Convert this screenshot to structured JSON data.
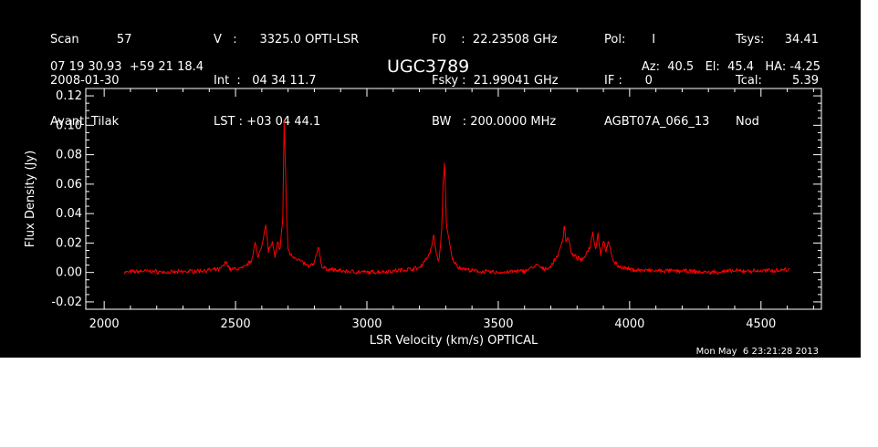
{
  "header": {
    "col1": [
      "Scan          57",
      "2008-01-30",
      "Avanti Tilak"
    ],
    "col2": [
      "V   :      3325.0 OPTI-LSR",
      "Int  :   04 34 11.7",
      "LST : +03 04 44.1"
    ],
    "col3": [
      "F0    :  22.23508 GHz",
      "Fsky :  21.99041 GHz",
      "BW   : 200.0000 MHz"
    ],
    "col4": [
      "Pol:       I",
      "IF :      0",
      "AGBT07A_066_13"
    ],
    "col5a": [
      "Tsys:",
      "Tcal:",
      "Nod"
    ],
    "col5b": [
      "34.41",
      "5.39",
      ""
    ],
    "coords": "07 19 30.93  +59 21 18.4",
    "source": "UGC3789",
    "azel": "Az:  40.5   El:  45.4   HA: -4.25",
    "timestamp": "Mon May  6 23:21:28 2013"
  },
  "colors": {
    "background": "#000000",
    "axes": "#ffffff",
    "spectrum": "#ff0000"
  },
  "chart_data": {
    "type": "line",
    "xlabel": "LSR Velocity (km/s) OPTICAL",
    "ylabel": "Flux Density (Jy)",
    "xlim": [
      1930,
      4730
    ],
    "ylim": [
      -0.025,
      0.125
    ],
    "xticks": [
      2000,
      2500,
      3000,
      3500,
      4000,
      4500
    ],
    "xtick_labels": [
      "2000",
      "2500",
      "3000",
      "3500",
      "4000",
      "4500"
    ],
    "yticks": [
      -0.02,
      0.0,
      0.02,
      0.04,
      0.06,
      0.08,
      0.1,
      0.12
    ],
    "ytick_labels": [
      "-0.02",
      "0.00",
      "0.02",
      "0.04",
      "0.06",
      "0.08",
      "0.10",
      "0.12"
    ],
    "series": [
      {
        "x": [
          2075,
          2150,
          2250,
          2350,
          2440,
          2465,
          2480,
          2530,
          2560,
          2575,
          2585,
          2600,
          2615,
          2625,
          2640,
          2650,
          2660,
          2670,
          2680,
          2685,
          2690,
          2695,
          2700,
          2710,
          2730,
          2760,
          2780,
          2800,
          2815,
          2830,
          2900,
          3000,
          3100,
          3200,
          3240,
          3255,
          3265,
          3275,
          3285,
          3290,
          3296,
          3302,
          3310,
          3325,
          3345,
          3360,
          3400,
          3500,
          3600,
          3650,
          3670,
          3700,
          3730,
          3745,
          3752,
          3758,
          3765,
          3780,
          3820,
          3850,
          3860,
          3870,
          3880,
          3890,
          3900,
          3910,
          3920,
          3940,
          3960,
          4000,
          4100,
          4200,
          4300,
          4400,
          4500,
          4610
        ],
        "y": [
          0.0,
          0.001,
          0.0,
          0.001,
          0.002,
          0.007,
          0.002,
          0.003,
          0.008,
          0.02,
          0.01,
          0.019,
          0.032,
          0.015,
          0.02,
          0.01,
          0.02,
          0.016,
          0.038,
          0.103,
          0.07,
          0.035,
          0.016,
          0.012,
          0.01,
          0.006,
          0.004,
          0.006,
          0.018,
          0.003,
          0.001,
          0.0,
          0.001,
          0.003,
          0.013,
          0.025,
          0.012,
          0.008,
          0.03,
          0.06,
          0.076,
          0.035,
          0.024,
          0.009,
          0.004,
          0.003,
          0.001,
          0.0,
          0.001,
          0.005,
          0.002,
          0.004,
          0.013,
          0.022,
          0.033,
          0.02,
          0.025,
          0.012,
          0.008,
          0.018,
          0.028,
          0.016,
          0.026,
          0.012,
          0.022,
          0.015,
          0.02,
          0.007,
          0.004,
          0.002,
          0.001,
          0.001,
          0.0,
          0.001,
          0.001,
          0.002
        ]
      }
    ]
  }
}
